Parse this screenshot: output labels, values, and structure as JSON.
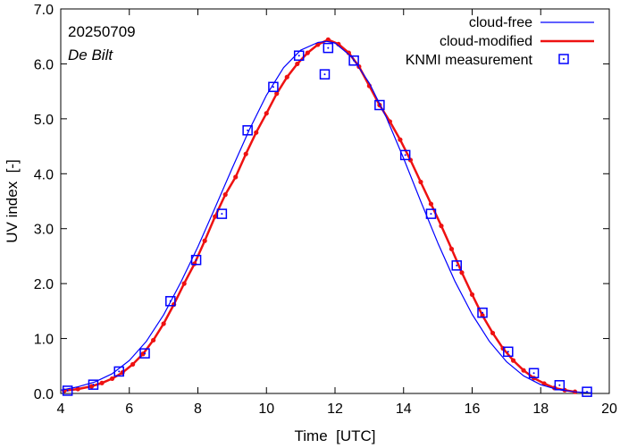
{
  "chart_data": {
    "type": "line",
    "title": "",
    "date_label": "20250709",
    "location_label": "De Bilt",
    "xlabel": "Time  [UTC]",
    "ylabel": "UV index  [-]",
    "xlim": [
      4,
      20
    ],
    "ylim": [
      0,
      7
    ],
    "x_ticks": [
      4,
      6,
      8,
      10,
      12,
      14,
      16,
      18,
      20
    ],
    "y_ticks": [
      0,
      1,
      2,
      3,
      4,
      5,
      6,
      7
    ],
    "x_tick_labels": [
      "4",
      "6",
      "8",
      "10",
      "12",
      "14",
      "16",
      "18",
      "20"
    ],
    "y_tick_labels": [
      "0.0",
      "1.0",
      "2.0",
      "3.0",
      "4.0",
      "5.0",
      "6.0",
      "7.0"
    ],
    "legend_position": "top-right",
    "series": [
      {
        "name": "cloud-free",
        "style": "line",
        "color": "#0000ff",
        "x": [
          4.0,
          4.5,
          5.0,
          5.5,
          6.0,
          6.5,
          7.0,
          7.5,
          8.0,
          8.5,
          9.0,
          9.5,
          10.0,
          10.5,
          11.0,
          11.5,
          11.75,
          12.0,
          12.5,
          13.0,
          13.5,
          14.0,
          14.5,
          15.0,
          15.5,
          16.0,
          16.5,
          17.0,
          17.5,
          18.0,
          18.5,
          19.0,
          19.5
        ],
        "y": [
          0.06,
          0.12,
          0.21,
          0.36,
          0.6,
          0.95,
          1.43,
          2.02,
          2.67,
          3.38,
          4.1,
          4.8,
          5.43,
          5.93,
          6.25,
          6.39,
          6.41,
          6.38,
          6.12,
          5.65,
          5.02,
          4.28,
          3.5,
          2.74,
          2.04,
          1.44,
          0.95,
          0.58,
          0.32,
          0.16,
          0.07,
          0.03,
          0.01
        ]
      },
      {
        "name": "cloud-modified",
        "style": "line-dots",
        "color": "#ee1111",
        "x": [
          4.1,
          4.5,
          4.9,
          5.2,
          5.5,
          5.8,
          6.1,
          6.4,
          6.7,
          7.0,
          7.3,
          7.6,
          7.9,
          8.2,
          8.5,
          8.8,
          9.1,
          9.4,
          9.7,
          10.0,
          10.3,
          10.6,
          10.9,
          11.2,
          11.5,
          11.8,
          12.1,
          12.4,
          12.7,
          13.0,
          13.3,
          13.6,
          13.9,
          14.2,
          14.5,
          14.8,
          15.1,
          15.4,
          15.7,
          16.0,
          16.3,
          16.6,
          16.9,
          17.2,
          17.5,
          17.8,
          18.1,
          18.4,
          18.7,
          19.0
        ],
        "y": [
          0.05,
          0.08,
          0.13,
          0.19,
          0.27,
          0.38,
          0.53,
          0.72,
          0.97,
          1.27,
          1.62,
          2.0,
          2.36,
          2.78,
          3.22,
          3.62,
          3.94,
          4.36,
          4.75,
          5.1,
          5.46,
          5.76,
          6.0,
          6.2,
          6.35,
          6.44,
          6.36,
          6.2,
          5.95,
          5.6,
          5.25,
          4.95,
          4.62,
          4.25,
          3.85,
          3.45,
          3.05,
          2.63,
          2.2,
          1.8,
          1.42,
          1.1,
          0.82,
          0.6,
          0.42,
          0.28,
          0.18,
          0.1,
          0.06,
          0.03
        ]
      },
      {
        "name": "KNMI measurement",
        "style": "markers",
        "color": "#0000ff",
        "x": [
          4.2,
          4.95,
          5.7,
          6.45,
          7.2,
          7.95,
          8.7,
          9.45,
          10.2,
          10.95,
          11.7,
          11.8,
          12.55,
          13.3,
          14.05,
          14.8,
          15.55,
          16.3,
          17.05,
          17.8,
          18.55,
          19.35
        ],
        "y": [
          0.05,
          0.16,
          0.4,
          0.73,
          1.68,
          2.43,
          3.27,
          4.79,
          5.58,
          6.15,
          5.81,
          6.29,
          6.06,
          5.25,
          4.34,
          3.27,
          2.33,
          1.47,
          0.76,
          0.37,
          0.15,
          0.03
        ]
      }
    ]
  }
}
